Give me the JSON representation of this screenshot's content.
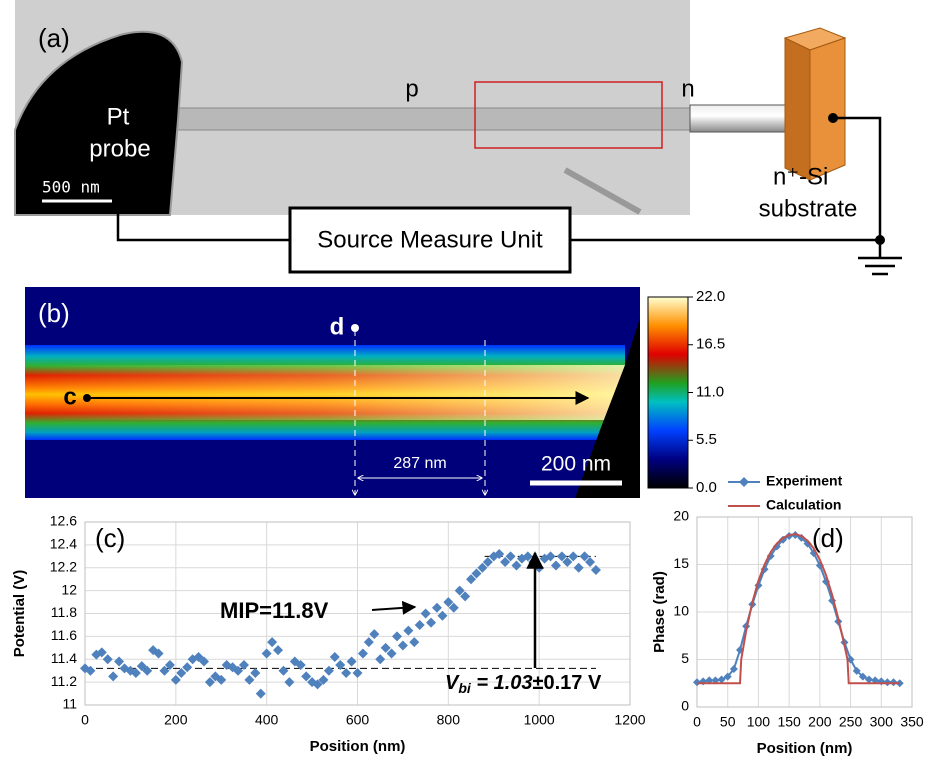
{
  "panel_a": {
    "label": "(a)",
    "probe_label": [
      "Pt",
      "probe"
    ],
    "scale_bar": "500 nm",
    "p_label": "p",
    "n_label": "n",
    "substrate_label": [
      "n⁺-Si",
      "substrate"
    ],
    "instrument": "Source Measure Unit"
  },
  "panel_b": {
    "label": "(b)",
    "point_d": "d",
    "point_c": "c",
    "distance": "287 nm",
    "scale_bar": "200 nm",
    "colorbar": {
      "clim": [
        0,
        22
      ],
      "ticks": [
        {
          "value": 22,
          "label": "22.0"
        },
        {
          "value": 16.5,
          "label": "16.5"
        },
        {
          "value": 11,
          "label": "11.0"
        },
        {
          "value": 5.5,
          "label": "5.5"
        },
        {
          "value": 0,
          "label": "0.0"
        }
      ]
    }
  },
  "chart_data": [
    {
      "type": "scatter",
      "label": "(c)",
      "x_label": "Position (nm)",
      "y_label": "Potential (V)",
      "xlim": [
        0,
        1200
      ],
      "xticks": [
        0,
        200,
        400,
        600,
        800,
        1000,
        1200
      ],
      "ylim": [
        11,
        12.6
      ],
      "yticks": [
        11,
        11.2,
        11.4,
        11.6,
        11.8,
        12,
        12.2,
        12.4,
        12.6
      ],
      "grid": true,
      "series": [
        {
          "color": "#4f81bd",
          "x": [
            0,
            12,
            25,
            37,
            50,
            62,
            75,
            87,
            100,
            112,
            125,
            137,
            150,
            162,
            175,
            187,
            200,
            212,
            225,
            237,
            250,
            262,
            275,
            287,
            300,
            312,
            325,
            337,
            350,
            362,
            375,
            387,
            400,
            412,
            425,
            437,
            450,
            462,
            475,
            487,
            500,
            512,
            525,
            537,
            550,
            562,
            575,
            587,
            600,
            612,
            625,
            637,
            650,
            662,
            675,
            687,
            700,
            712,
            725,
            737,
            750,
            762,
            775,
            787,
            800,
            812,
            825,
            837,
            850,
            862,
            875,
            887,
            900,
            912,
            925,
            937,
            950,
            962,
            975,
            987,
            1000,
            1012,
            1025,
            1037,
            1050,
            1062,
            1075,
            1087,
            1100,
            1112,
            1125
          ],
          "values": [
            11.32,
            11.3,
            11.44,
            11.46,
            11.4,
            11.25,
            11.38,
            11.32,
            11.3,
            11.28,
            11.34,
            11.3,
            11.48,
            11.45,
            11.3,
            11.35,
            11.22,
            11.28,
            11.33,
            11.4,
            11.42,
            11.38,
            11.2,
            11.25,
            11.22,
            11.35,
            11.33,
            11.3,
            11.35,
            11.22,
            11.28,
            11.1,
            11.45,
            11.55,
            11.48,
            11.3,
            11.2,
            11.38,
            11.35,
            11.25,
            11.2,
            11.18,
            11.22,
            11.3,
            11.42,
            11.35,
            11.28,
            11.38,
            11.28,
            11.45,
            11.55,
            11.62,
            11.4,
            11.5,
            11.45,
            11.6,
            11.52,
            11.65,
            11.55,
            11.7,
            11.8,
            11.72,
            11.85,
            11.78,
            11.9,
            11.85,
            12.0,
            11.95,
            12.1,
            12.15,
            12.2,
            12.25,
            12.3,
            12.32,
            12.25,
            12.3,
            12.22,
            12.28,
            12.3,
            12.25,
            12.2,
            12.28,
            12.3,
            12.22,
            12.3,
            12.25,
            12.3,
            12.2,
            12.3,
            12.25,
            12.18
          ]
        }
      ],
      "reference_lines": [
        {
          "y": 11.32,
          "x": [
            0,
            1125
          ]
        },
        {
          "y": 12.3,
          "x": [
            880,
            1125
          ]
        }
      ],
      "annotations": [
        "MIP=11.8V"
      ],
      "vbi": [
        "V",
        "bi",
        " = 1.03",
        "±0.17 V"
      ]
    },
    {
      "type": "line",
      "label": "(d)",
      "x_label": "Position (nm)",
      "y_label": "Phase (rad)",
      "xlim": [
        0,
        350
      ],
      "xticks": [
        0,
        50,
        100,
        150,
        200,
        250,
        300,
        350
      ],
      "ylim": [
        0,
        20
      ],
      "yticks": [
        0,
        5,
        10,
        15,
        20
      ],
      "grid": true,
      "legend": "top",
      "series": [
        {
          "name": "Experiment",
          "color": "#4f81bd",
          "marker": "diamond",
          "x": [
            0,
            10,
            20,
            30,
            40,
            50,
            60,
            70,
            80,
            90,
            100,
            110,
            120,
            130,
            140,
            150,
            160,
            170,
            180,
            190,
            200,
            210,
            220,
            230,
            240,
            250,
            260,
            270,
            280,
            290,
            300,
            310,
            320,
            330
          ],
          "values": [
            2.6,
            2.7,
            2.8,
            2.8,
            2.9,
            3.2,
            4,
            6,
            8.5,
            10.8,
            12.8,
            14.5,
            15.9,
            16.9,
            17.6,
            18,
            18.1,
            17.8,
            17.2,
            16.2,
            14.9,
            13.2,
            11.2,
            9,
            6.8,
            5,
            3.8,
            3.2,
            2.9,
            2.8,
            2.7,
            2.6,
            2.6,
            2.5
          ]
        },
        {
          "name": "Calculation",
          "color": "#c0504d",
          "x": [
            0,
            70,
            72,
            80,
            90,
            100,
            110,
            120,
            130,
            140,
            150,
            160,
            170,
            180,
            190,
            200,
            210,
            220,
            230,
            240,
            245,
            247,
            330
          ],
          "values": [
            2.5,
            2.5,
            5,
            8,
            11,
            13.3,
            15,
            16.3,
            17.2,
            17.8,
            18.1,
            18.2,
            18,
            17.5,
            16.7,
            15.5,
            13.9,
            11.8,
            9.3,
            6.5,
            5,
            2.5,
            2.5
          ]
        }
      ]
    }
  ]
}
